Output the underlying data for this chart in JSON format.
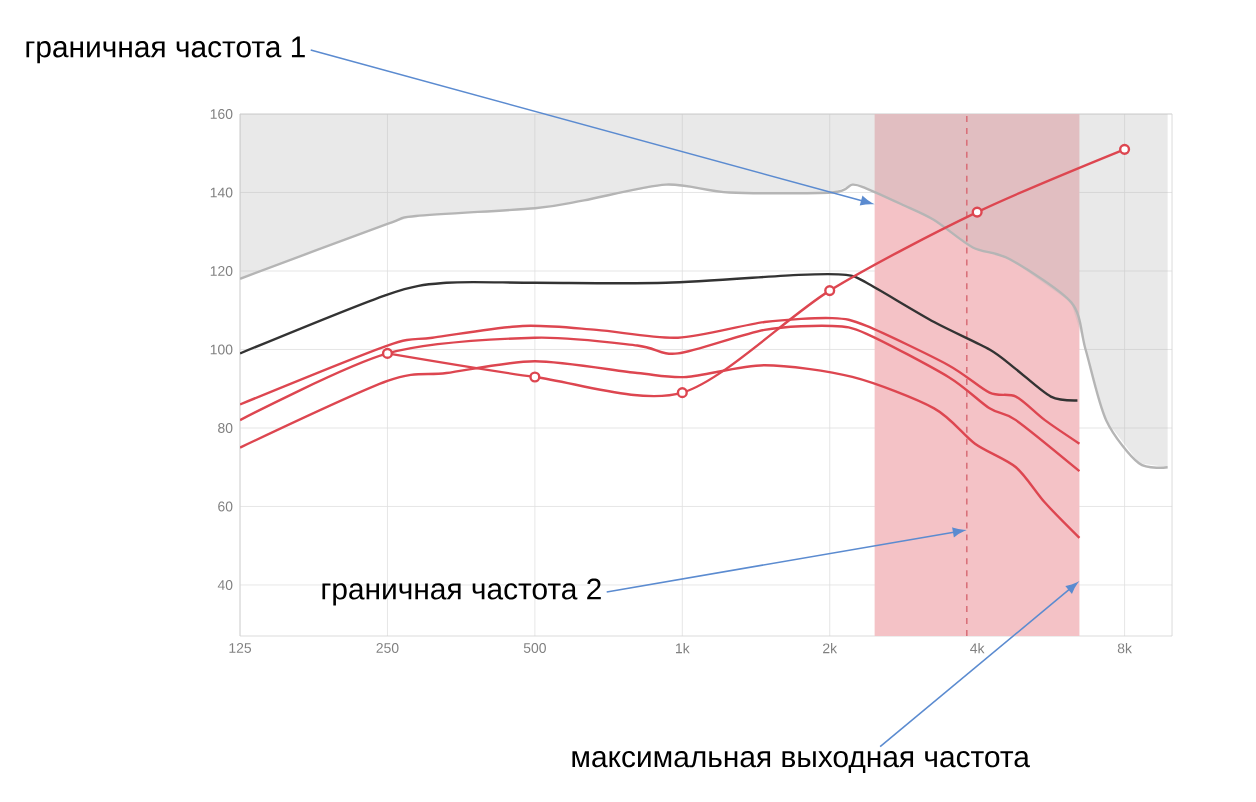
{
  "chart_data": {
    "type": "line",
    "xlim": [
      125,
      10000
    ],
    "ylim": [
      27,
      160
    ],
    "log": "x",
    "grid": true,
    "xticks": [
      125,
      250,
      500,
      {
        "value": 1000,
        "label": "1k"
      },
      {
        "value": 2000,
        "label": "2k"
      },
      {
        "value": 4000,
        "label": "4k"
      },
      {
        "value": 8000,
        "label": "8k"
      }
    ],
    "yticks": [
      40,
      60,
      80,
      100,
      120,
      140,
      160
    ],
    "series": [
      {
        "color": "#b5b5b5",
        "x": [
          125,
          250,
          286,
          500,
          630,
          926,
          1248,
          2024,
          2224,
          2378,
          2803,
          3267,
          3920,
          4665,
          6225,
          6660,
          7336,
          8560,
          9795
        ],
        "values": [
          118,
          132,
          134,
          136,
          138,
          142,
          140,
          140,
          142,
          141,
          137,
          133,
          126,
          123,
          112,
          100,
          82,
          71,
          70
        ],
        "lower": [
          118,
          132,
          134,
          136,
          138,
          142,
          140,
          140,
          142,
          141,
          137,
          133,
          126,
          123,
          112,
          100,
          82,
          71,
          70
        ],
        "upper": [
          160,
          160,
          160,
          160,
          160,
          160,
          160,
          160,
          160,
          160,
          160,
          160,
          160,
          160,
          160,
          160,
          160,
          160,
          160
        ]
      },
      {
        "color": "#333333",
        "x": [
          125,
          250,
          330,
          500,
          926,
          1730,
          2160,
          2378,
          3267,
          4240,
          4800,
          5657,
          6410
        ],
        "values": [
          99,
          114,
          117,
          117,
          117,
          119,
          119,
          117,
          107,
          100,
          95,
          88,
          87
        ]
      },
      {
        "color": "#dd4650",
        "x": [
          125,
          250,
          309,
          472,
          668,
          980,
          1472,
          2024,
          2378,
          3495,
          4240,
          4800,
          5500,
          6470
        ],
        "values": [
          86,
          101,
          103,
          106,
          105,
          103,
          107,
          108,
          106,
          96,
          89,
          88,
          82,
          76
        ]
      },
      {
        "color": "#dd4650",
        "x": [
          125,
          250,
          500,
          809,
          980,
          1472,
          2024,
          2378,
          3495,
          4240,
          4800,
          6470
        ],
        "values": [
          82,
          99,
          103,
          101,
          99,
          105,
          106,
          104,
          93,
          85,
          82,
          69
        ]
      },
      {
        "color": "#dd4650",
        "x": [
          125,
          250,
          330,
          500,
          809,
          1020,
          1472,
          2224,
          3267,
          3960,
          4800,
          5500,
          6470
        ],
        "values": [
          75,
          92,
          94,
          97,
          94,
          93,
          96,
          93,
          85,
          76,
          70,
          61,
          52
        ]
      },
      {
        "color": "#dd4650",
        "marker": "circle",
        "x": [
          250,
          500,
          1000,
          2000,
          4000,
          8000
        ],
        "values": [
          99,
          93,
          89,
          115,
          135,
          151
        ]
      }
    ],
    "bands": [
      {
        "axis": "x",
        "from": 2470,
        "to": 6470,
        "color": "#f4c2c6"
      }
    ],
    "ref_lines": [
      {
        "axis": "x",
        "value": 3810,
        "color": "#d9707a",
        "line_style": "dashed"
      }
    ],
    "annotations": [
      {
        "text": "граничная частота 1",
        "x": 2470,
        "y": 137
      },
      {
        "text": "граничная частота 2",
        "x": 3810,
        "y": 54
      },
      {
        "text": "максимальная выходная частота",
        "x": 6470,
        "y": 41
      }
    ]
  }
}
